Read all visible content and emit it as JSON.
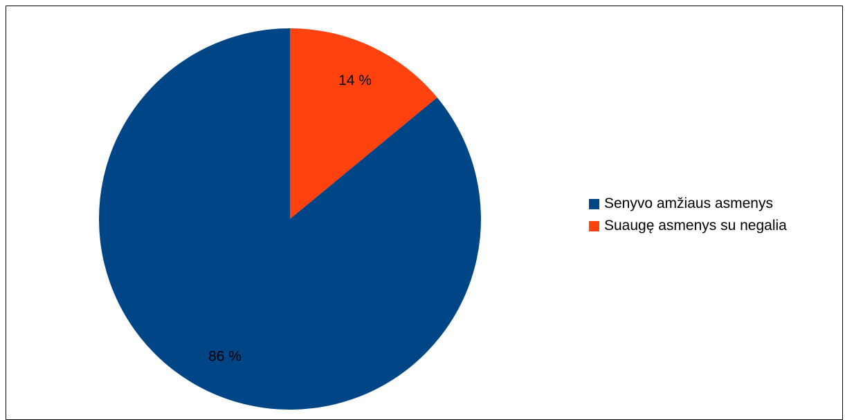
{
  "chart_data": {
    "type": "pie",
    "title": "",
    "start_angle_deg": 0,
    "direction": "clockwise",
    "legend_position": "right",
    "slices": [
      {
        "label": "Suaugę asmenys su negalia",
        "value": 14,
        "display": "14 %",
        "color": "#ff420e"
      },
      {
        "label": "Senyvo amžiaus asmenys",
        "value": 86,
        "display": "86 %",
        "color": "#004586"
      }
    ],
    "legend": [
      {
        "label": "Senyvo amžiaus asmenys",
        "color": "#004586"
      },
      {
        "label": "Suaugę asmenys su negalia",
        "color": "#ff420e"
      }
    ]
  }
}
